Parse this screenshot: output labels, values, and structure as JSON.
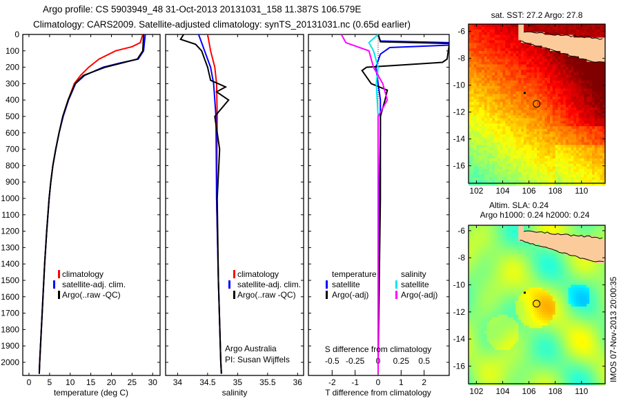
{
  "title_line1": "Argo profile: CS 5903949_48 31-Oct-2013 20131031_158 11.387S 106.579E",
  "title_line2": "Climatology: CARS2009. Satellite-adjusted climatology: synTS_20131031.nc (0.65d earlier)",
  "side_stamp": "IMOS 07-Nov-2013 20:00:35",
  "colors": {
    "climatology": "#ff0000",
    "satellite": "#0000ff",
    "argo": "#000000",
    "sal_satellite": "#00e5ee",
    "sal_argo": "#ff00ff",
    "land": "#fccb9c"
  },
  "chart_data": [
    {
      "type": "line",
      "name": "temperature",
      "xlabel": "temperature (deg C)",
      "ylabel": "depth",
      "xticks": [
        0,
        5,
        10,
        15,
        20,
        25,
        30
      ],
      "xlim": [
        -1.5,
        31.8
      ],
      "ylim": [
        2080,
        0
      ],
      "yticks": [
        0,
        100,
        200,
        300,
        400,
        500,
        600,
        700,
        800,
        900,
        1000,
        1100,
        1200,
        1300,
        1400,
        1500,
        1600,
        1700,
        1800,
        1900,
        2000
      ],
      "legend": [
        "climatology",
        "satellite-adj. clim.",
        "Argo(..raw -QC)"
      ],
      "series": [
        {
          "name": "climatology",
          "color": "#ff0000",
          "points": [
            [
              27.6,
              0
            ],
            [
              27,
              50
            ],
            [
              25,
              75
            ],
            [
              21,
              100
            ],
            [
              17,
              150
            ],
            [
              14.5,
              200
            ],
            [
              12.5,
              250
            ],
            [
              11,
              300
            ],
            [
              9.5,
              400
            ],
            [
              8.2,
              500
            ],
            [
              7.3,
              600
            ],
            [
              6.5,
              700
            ],
            [
              5.8,
              800
            ],
            [
              5.3,
              900
            ],
            [
              4.9,
              1000
            ],
            [
              4.3,
              1200
            ],
            [
              3.8,
              1400
            ],
            [
              3.4,
              1600
            ],
            [
              3,
              1800
            ],
            [
              2.6,
              2000
            ],
            [
              2.5,
              2070
            ]
          ]
        },
        {
          "name": "satellite-adj. clim.",
          "color": "#0000ff",
          "points": [
            [
              28.2,
              0
            ],
            [
              28,
              50
            ],
            [
              27.8,
              100
            ],
            [
              26.5,
              150
            ],
            [
              22,
              175
            ],
            [
              18,
              200
            ],
            [
              13.5,
              250
            ],
            [
              11.3,
              300
            ],
            [
              9.6,
              400
            ],
            [
              8.3,
              500
            ],
            [
              7.3,
              600
            ],
            [
              6.5,
              700
            ],
            [
              5.8,
              800
            ],
            [
              5.3,
              900
            ],
            [
              4.9,
              1000
            ],
            [
              4.3,
              1200
            ],
            [
              3.8,
              1400
            ],
            [
              3.4,
              1600
            ],
            [
              3,
              1800
            ],
            [
              2.6,
              2000
            ],
            [
              2.5,
              2070
            ]
          ]
        },
        {
          "name": "Argo(..raw -QC)",
          "color": "#000000",
          "points": [
            [
              27.8,
              0
            ],
            [
              27.7,
              50
            ],
            [
              27.6,
              100
            ],
            [
              26.3,
              150
            ],
            [
              18.5,
              200
            ],
            [
              13.2,
              250
            ],
            [
              11.2,
              300
            ],
            [
              9.5,
              400
            ],
            [
              8.2,
              500
            ],
            [
              7.3,
              600
            ],
            [
              6.5,
              700
            ],
            [
              5.8,
              800
            ],
            [
              5.3,
              900
            ],
            [
              4.9,
              1000
            ],
            [
              4.3,
              1200
            ],
            [
              3.8,
              1400
            ],
            [
              3.4,
              1600
            ],
            [
              3,
              1800
            ],
            [
              2.6,
              2000
            ],
            [
              2.5,
              2070
            ]
          ]
        }
      ]
    },
    {
      "type": "line",
      "name": "salinity",
      "xlabel": "salinity",
      "xticks": [
        34,
        34.5,
        35,
        35.5,
        36
      ],
      "xlim": [
        33.8,
        36.1
      ],
      "ylim": [
        2080,
        0
      ],
      "legend": [
        "climatology",
        "satellite-adj. clim.",
        "Argo(..raw -QC)"
      ],
      "annotation": [
        "Argo Australia",
        "PI: Susan Wijffels"
      ],
      "series": [
        {
          "name": "climatology",
          "color": "#ff0000",
          "points": [
            [
              34.5,
              0
            ],
            [
              34.55,
              100
            ],
            [
              34.62,
              200
            ],
            [
              34.65,
              300
            ],
            [
              34.66,
              500
            ],
            [
              34.65,
              1000
            ],
            [
              34.68,
              1500
            ],
            [
              34.72,
              2000
            ],
            [
              34.73,
              2070
            ]
          ]
        },
        {
          "name": "satellite-adj. clim.",
          "color": "#0000ff",
          "points": [
            [
              34.35,
              0
            ],
            [
              34.4,
              50
            ],
            [
              34.45,
              100
            ],
            [
              34.55,
              200
            ],
            [
              34.6,
              300
            ],
            [
              34.64,
              500
            ],
            [
              34.65,
              1000
            ],
            [
              34.68,
              1500
            ],
            [
              34.72,
              2000
            ],
            [
              34.73,
              2070
            ]
          ]
        },
        {
          "name": "Argo(..raw -QC)",
          "color": "#000000",
          "points": [
            [
              34.1,
              0
            ],
            [
              34.05,
              30
            ],
            [
              34.3,
              60
            ],
            [
              34.4,
              100
            ],
            [
              34.45,
              150
            ],
            [
              34.5,
              200
            ],
            [
              34.55,
              280
            ],
            [
              34.8,
              320
            ],
            [
              34.65,
              350
            ],
            [
              34.85,
              400
            ],
            [
              34.62,
              500
            ],
            [
              34.66,
              600
            ],
            [
              34.7,
              700
            ],
            [
              34.66,
              1000
            ],
            [
              34.68,
              1500
            ],
            [
              34.72,
              2000
            ],
            [
              34.73,
              2070
            ]
          ]
        }
      ]
    },
    {
      "type": "line",
      "name": "differences",
      "xlabel": "T difference from climatology",
      "xlabel2": "S difference from climatology",
      "xticks": [
        -2,
        -1,
        0,
        1,
        2
      ],
      "xticks2": [
        "-0.5",
        "-0.25",
        "0",
        "0.25",
        "0.5"
      ],
      "xticks2_values": [
        -0.5,
        -0.25,
        0,
        0.25,
        0.5
      ],
      "xlim": [
        -3.03,
        3.09
      ],
      "ylim": [
        2080,
        0
      ],
      "legend_temperature": {
        "title": "temperature",
        "items": [
          "satellite",
          "Argo(-adj)"
        ]
      },
      "legend_salinity": {
        "title": "salinity",
        "items": [
          "satellite",
          "Argo(-adj)"
        ]
      },
      "series": [
        {
          "name": "T satellite",
          "axis": "T",
          "color": "#0000ff",
          "points": [
            [
              0,
              0
            ],
            [
              0.1,
              40
            ],
            [
              3.1,
              50
            ],
            [
              3.1,
              65
            ],
            [
              0.5,
              80
            ],
            [
              0.1,
              120
            ],
            [
              -0.1,
              200
            ],
            [
              0.1,
              400
            ],
            [
              0.1,
              600
            ],
            [
              0.05,
              1000
            ],
            [
              0,
              2000
            ],
            [
              0,
              2070
            ]
          ]
        },
        {
          "name": "T Argo(-adj)",
          "axis": "T",
          "color": "#000000",
          "points": [
            [
              0,
              0
            ],
            [
              0.1,
              45
            ],
            [
              3.1,
              55
            ],
            [
              3,
              150
            ],
            [
              2.8,
              170
            ],
            [
              -0.5,
              200
            ],
            [
              -0.7,
              220
            ],
            [
              -0.3,
              300
            ],
            [
              0.4,
              340
            ],
            [
              0.3,
              400
            ],
            [
              0.1,
              500
            ],
            [
              0.1,
              1000
            ],
            [
              0,
              2000
            ],
            [
              0,
              2070
            ]
          ]
        },
        {
          "name": "S satellite",
          "axis": "S",
          "color": "#00e5ee",
          "points": [
            [
              0,
              0
            ],
            [
              -0.1,
              50
            ],
            [
              -0.05,
              100
            ],
            [
              0,
              200
            ],
            [
              -0.02,
              300
            ],
            [
              0,
              500
            ],
            [
              0,
              2000
            ],
            [
              0,
              2070
            ]
          ]
        },
        {
          "name": "S Argo(-adj)",
          "axis": "S",
          "color": "#ff00ff",
          "points": [
            [
              -0.4,
              0
            ],
            [
              -0.35,
              50
            ],
            [
              -0.1,
              100
            ],
            [
              -0.05,
              200
            ],
            [
              0.05,
              300
            ],
            [
              0.1,
              400
            ],
            [
              0,
              500
            ],
            [
              0,
              800
            ],
            [
              0,
              2000
            ],
            [
              0,
              2070
            ]
          ]
        }
      ]
    }
  ],
  "maps": [
    {
      "name": "sst-map",
      "title": [
        "sat. SST: 27.2 Argo: 27.8"
      ],
      "lon_ticks": [
        102,
        104,
        106,
        108,
        110
      ],
      "lat_ticks": [
        -6,
        -8,
        -10,
        -12,
        -14,
        -16
      ],
      "float_lon": 106.579,
      "float_lat": -11.387
    },
    {
      "name": "sla-map",
      "title": [
        "Altim. SLA: 0.24",
        "Argo h1000: 0.24 h2000: 0.24"
      ],
      "lon_ticks": [
        102,
        104,
        106,
        108,
        110
      ],
      "lat_ticks": [
        -6,
        -8,
        -10,
        -12,
        -14,
        -16
      ],
      "float_lon": 106.579,
      "float_lat": -11.387
    }
  ]
}
